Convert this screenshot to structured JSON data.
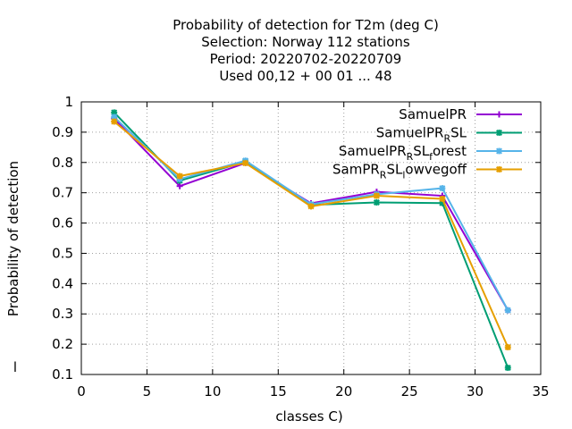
{
  "chart_data": {
    "type": "line",
    "title_lines": [
      "Probability of detection  for T2m (deg C)",
      "Selection: Norway    112 stations",
      "Period: 20220702-20220709",
      "Used  00,12  + 00 01 ... 48"
    ],
    "xlabel": "classes C)",
    "ylabel": "Probability of detection",
    "xlim": [
      0,
      35
    ],
    "ylim": [
      0.1,
      1
    ],
    "xticks": [
      "0",
      "5",
      "10",
      "15",
      "20",
      "25",
      "30",
      "35"
    ],
    "yticks": [
      "0.1",
      "0.2",
      "0.3",
      "0.4",
      "0.5",
      "0.6",
      "0.7",
      "0.8",
      "0.9",
      "1"
    ],
    "grid": true,
    "legend_position": "top-right",
    "x": [
      2.5,
      7.5,
      12.5,
      17.5,
      22.5,
      27.5,
      32.5
    ],
    "series": [
      {
        "name": "SamuelPR",
        "legend_parts": [
          {
            "text": "SamuelPR",
            "sub": false
          }
        ],
        "color": "#9400d3",
        "marker": "plus",
        "values": [
          0.945,
          0.722,
          0.798,
          0.665,
          0.703,
          0.69,
          0.312
        ]
      },
      {
        "name": "SamuelPR_RSL",
        "legend_parts": [
          {
            "text": "SamuelPR",
            "sub": false
          },
          {
            "text": "R",
            "sub": true
          },
          {
            "text": "SL",
            "sub": false
          }
        ],
        "color": "#009e73",
        "marker": "star",
        "values": [
          0.965,
          0.74,
          0.802,
          0.66,
          0.668,
          0.666,
          0.122
        ]
      },
      {
        "name": "SamuelPR_RSL_forest",
        "legend_parts": [
          {
            "text": "SamuelPR",
            "sub": false
          },
          {
            "text": "R",
            "sub": true
          },
          {
            "text": "SL",
            "sub": false
          },
          {
            "text": "f",
            "sub": true
          },
          {
            "text": "orest",
            "sub": false
          }
        ],
        "color": "#56b4e9",
        "marker": "star",
        "values": [
          0.95,
          0.745,
          0.806,
          0.662,
          0.695,
          0.715,
          0.312
        ]
      },
      {
        "name": "SamPR_RSL_lowvegoff",
        "legend_parts": [
          {
            "text": "SamPR",
            "sub": false
          },
          {
            "text": "R",
            "sub": true
          },
          {
            "text": "SL",
            "sub": false
          },
          {
            "text": "l",
            "sub": true
          },
          {
            "text": "owvegoff",
            "sub": false
          }
        ],
        "color": "#e69f00",
        "marker": "star",
        "values": [
          0.935,
          0.755,
          0.798,
          0.655,
          0.69,
          0.68,
          0.19
        ]
      }
    ],
    "stray_text": "l"
  }
}
